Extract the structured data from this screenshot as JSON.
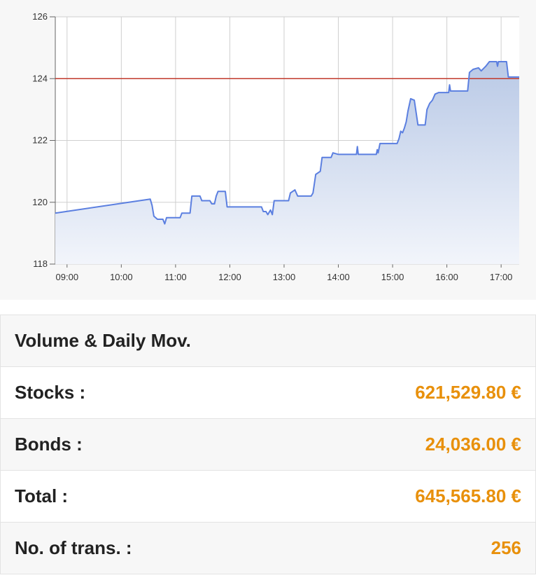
{
  "chart_data": {
    "type": "area",
    "x_ticks": [
      "09:00",
      "10:00",
      "11:00",
      "12:00",
      "13:00",
      "14:00",
      "15:00",
      "16:00",
      "17:00"
    ],
    "y_ticks": [
      "118",
      "120",
      "122",
      "124",
      "126"
    ],
    "ylim": [
      118,
      126
    ],
    "xlim": [
      "08:47",
      "17:20"
    ],
    "reference_line": 124,
    "colors": {
      "line": "#5b7fe0",
      "reference": "#c0392b",
      "fill_top": "#b9c9e6",
      "fill_bottom": "#f2f5fb"
    },
    "series": [
      {
        "values": [
          [
            "08:47",
            119.65
          ],
          [
            "10:32",
            120.1
          ],
          [
            "10:34",
            119.9
          ],
          [
            "10:36",
            119.55
          ],
          [
            "10:40",
            119.45
          ],
          [
            "10:46",
            119.45
          ],
          [
            "10:48",
            119.3
          ],
          [
            "10:50",
            119.5
          ],
          [
            "11:05",
            119.5
          ],
          [
            "11:07",
            119.65
          ],
          [
            "11:16",
            119.65
          ],
          [
            "11:18",
            120.2
          ],
          [
            "11:27",
            120.2
          ],
          [
            "11:29",
            120.05
          ],
          [
            "11:38",
            120.05
          ],
          [
            "11:40",
            119.95
          ],
          [
            "11:43",
            119.95
          ],
          [
            "11:45",
            120.2
          ],
          [
            "11:47",
            120.35
          ],
          [
            "11:55",
            120.35
          ],
          [
            "11:57",
            119.85
          ],
          [
            "12:35",
            119.85
          ],
          [
            "12:37",
            119.7
          ],
          [
            "12:40",
            119.7
          ],
          [
            "12:42",
            119.6
          ],
          [
            "12:45",
            119.75
          ],
          [
            "12:47",
            119.6
          ],
          [
            "12:49",
            120.05
          ],
          [
            "13:05",
            120.05
          ],
          [
            "13:07",
            120.3
          ],
          [
            "13:12",
            120.4
          ],
          [
            "13:15",
            120.2
          ],
          [
            "13:30",
            120.2
          ],
          [
            "13:32",
            120.3
          ],
          [
            "13:35",
            120.9
          ],
          [
            "13:40",
            121.0
          ],
          [
            "13:42",
            121.45
          ],
          [
            "13:52",
            121.45
          ],
          [
            "13:54",
            121.6
          ],
          [
            "14:00",
            121.55
          ],
          [
            "14:20",
            121.55
          ],
          [
            "14:21",
            121.8
          ],
          [
            "14:22",
            121.55
          ],
          [
            "14:42",
            121.55
          ],
          [
            "14:43",
            121.7
          ],
          [
            "14:44",
            121.6
          ],
          [
            "14:46",
            121.9
          ],
          [
            "15:05",
            121.9
          ],
          [
            "15:07",
            122.05
          ],
          [
            "15:09",
            122.3
          ],
          [
            "15:11",
            122.25
          ],
          [
            "15:13",
            122.4
          ],
          [
            "15:15",
            122.6
          ],
          [
            "15:17",
            122.95
          ],
          [
            "15:20",
            123.35
          ],
          [
            "15:24",
            123.3
          ],
          [
            "15:28",
            122.5
          ],
          [
            "15:36",
            122.5
          ],
          [
            "15:38",
            123.0
          ],
          [
            "15:41",
            123.2
          ],
          [
            "15:44",
            123.3
          ],
          [
            "15:47",
            123.5
          ],
          [
            "15:51",
            123.55
          ],
          [
            "16:02",
            123.55
          ],
          [
            "16:03",
            123.8
          ],
          [
            "16:04",
            123.6
          ],
          [
            "16:23",
            123.6
          ],
          [
            "16:25",
            124.2
          ],
          [
            "16:29",
            124.3
          ],
          [
            "16:35",
            124.35
          ],
          [
            "16:38",
            124.25
          ],
          [
            "16:43",
            124.4
          ],
          [
            "16:47",
            124.55
          ],
          [
            "16:55",
            124.55
          ],
          [
            "16:56",
            124.4
          ],
          [
            "16:57",
            124.55
          ],
          [
            "17:06",
            124.55
          ],
          [
            "17:08",
            124.05
          ],
          [
            "17:20",
            124.05
          ]
        ]
      }
    ]
  },
  "volume_table": {
    "header": "Volume & Daily Mov.",
    "rows": [
      {
        "label": "Stocks :",
        "value": "621,529.80 €"
      },
      {
        "label": "Bonds :",
        "value": "24,036.00 €"
      },
      {
        "label": "Total :",
        "value": "645,565.80 €"
      },
      {
        "label": "No. of trans. :",
        "value": "256"
      }
    ]
  }
}
